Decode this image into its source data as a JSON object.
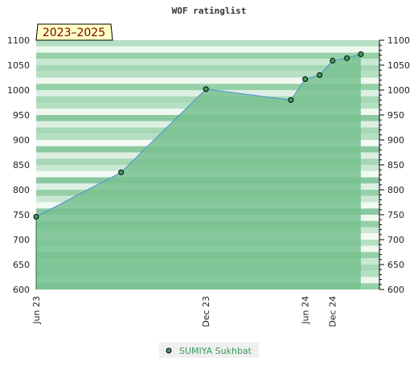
{
  "chart_data": {
    "type": "area",
    "title": "WOF ratinglist",
    "badge": "2023–2025",
    "x_ticks": [
      "Jun 23",
      "Dec 23",
      "Jun 24",
      "Dec 24"
    ],
    "y_ticks": [
      600,
      650,
      700,
      750,
      800,
      850,
      900,
      950,
      1000,
      1050,
      1100
    ],
    "ylim": [
      600,
      1100
    ],
    "xlim": [
      "2023-06-01",
      "2025-06-10"
    ],
    "series": [
      {
        "name": "SUMIYA Sukhbat",
        "x": [
          "2023-06-01",
          "2023-12-01",
          "2024-06-01",
          "2024-12-01",
          "2025-01-01",
          "2025-02-01",
          "2025-03-01",
          "2025-04-01",
          "2025-05-01"
        ],
        "y": [
          746,
          835,
          1002,
          980,
          1022,
          1030,
          1059,
          1064,
          1072
        ]
      }
    ],
    "colors": {
      "line": "#4a90d9",
      "fill": "#77c18f",
      "marker": "#3f9b5e",
      "legend_text": "#3c9a5c"
    },
    "grid": true,
    "legend_position": "bottom"
  }
}
